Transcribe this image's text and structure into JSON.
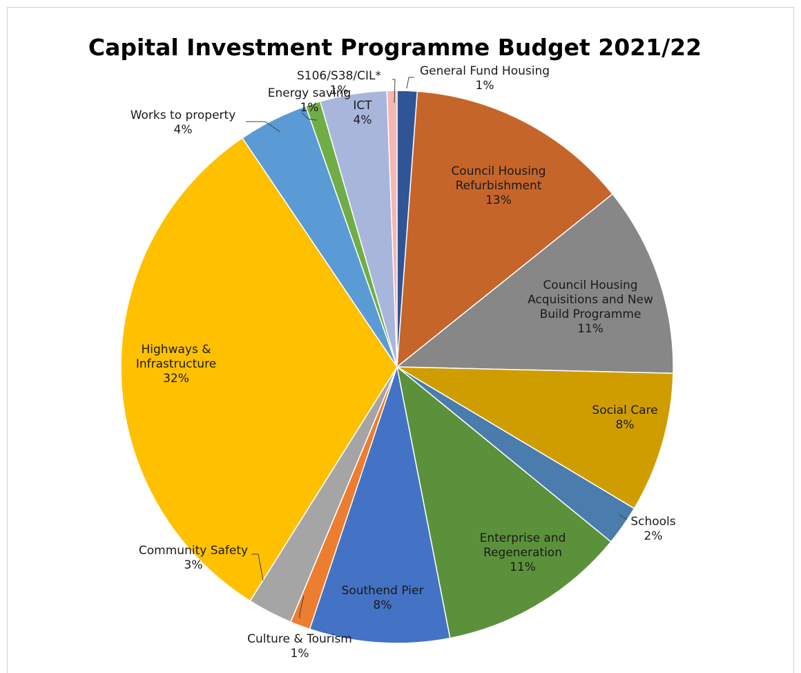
{
  "chart_data": {
    "type": "pie",
    "title": "Capital Investment Programme Budget 2021/22",
    "start_angle_deg": 0,
    "direction": "clockwise",
    "slices": [
      {
        "name": "General Fund Housing",
        "label_lines": [
          "General  Fund Housing",
          "1%"
        ],
        "value": 1.2,
        "percent_label": "1%",
        "color": "#2f5597"
      },
      {
        "name": "Council Housing Refurbishment",
        "label_lines": [
          "Council Housing",
          "Refurbishment",
          "13%"
        ],
        "value": 13.4,
        "percent_label": "13%",
        "color": "#c5652a"
      },
      {
        "name": "Council Housing Acquisitions and New Build Programme",
        "label_lines": [
          "Council Housing",
          "Acquisitions and New",
          "Build Programme",
          "11%"
        ],
        "value": 11.4,
        "percent_label": "11%",
        "color": "#878787"
      },
      {
        "name": "Social Care",
        "label_lines": [
          "Social Care",
          "8%"
        ],
        "value": 8.4,
        "percent_label": "8%",
        "color": "#d09d00"
      },
      {
        "name": "Schools",
        "label_lines": [
          "Schools",
          "2%"
        ],
        "value": 2.4,
        "percent_label": "2%",
        "color": "#4a7cad"
      },
      {
        "name": "Enterprise and Regeneration",
        "label_lines": [
          "Enterprise and",
          "Regeneration",
          "11%"
        ],
        "value": 11.3,
        "percent_label": "11%",
        "color": "#5b913b"
      },
      {
        "name": "Southend Pier",
        "label_lines": [
          "Southend Pier",
          "8%"
        ],
        "value": 8.4,
        "percent_label": "8%",
        "color": "#4472c4"
      },
      {
        "name": "Culture & Tourism",
        "label_lines": [
          "Culture & Tourism",
          "1%"
        ],
        "value": 1.2,
        "percent_label": "1%",
        "color": "#ed7d31"
      },
      {
        "name": "Community Safety",
        "label_lines": [
          "Community Safety",
          "3%"
        ],
        "value": 2.7,
        "percent_label": "3%",
        "color": "#a5a5a5"
      },
      {
        "name": "Highways & Infrastructure",
        "label_lines": [
          "Highways &",
          "Infrastructure",
          "32%"
        ],
        "value": 32.4,
        "percent_label": "32%",
        "color": "#ffc000"
      },
      {
        "name": "Works to property",
        "label_lines": [
          "Works to property",
          "4%"
        ],
        "value": 4.2,
        "percent_label": "4%",
        "color": "#5b9bd5"
      },
      {
        "name": "Energy saving",
        "label_lines": [
          "Energy saving",
          "1%"
        ],
        "value": 0.9,
        "percent_label": "1%",
        "color": "#70ad47"
      },
      {
        "name": "ICT",
        "label_lines": [
          "ICT",
          "4%"
        ],
        "value": 4.0,
        "percent_label": "4%",
        "color": "#a9b6dc"
      },
      {
        "name": "S106/S38/CIL*",
        "label_lines": [
          "S106/S38/CIL*",
          "1%"
        ],
        "value": 0.6,
        "percent_label": "1%",
        "color": "#f4b7b3"
      }
    ]
  }
}
